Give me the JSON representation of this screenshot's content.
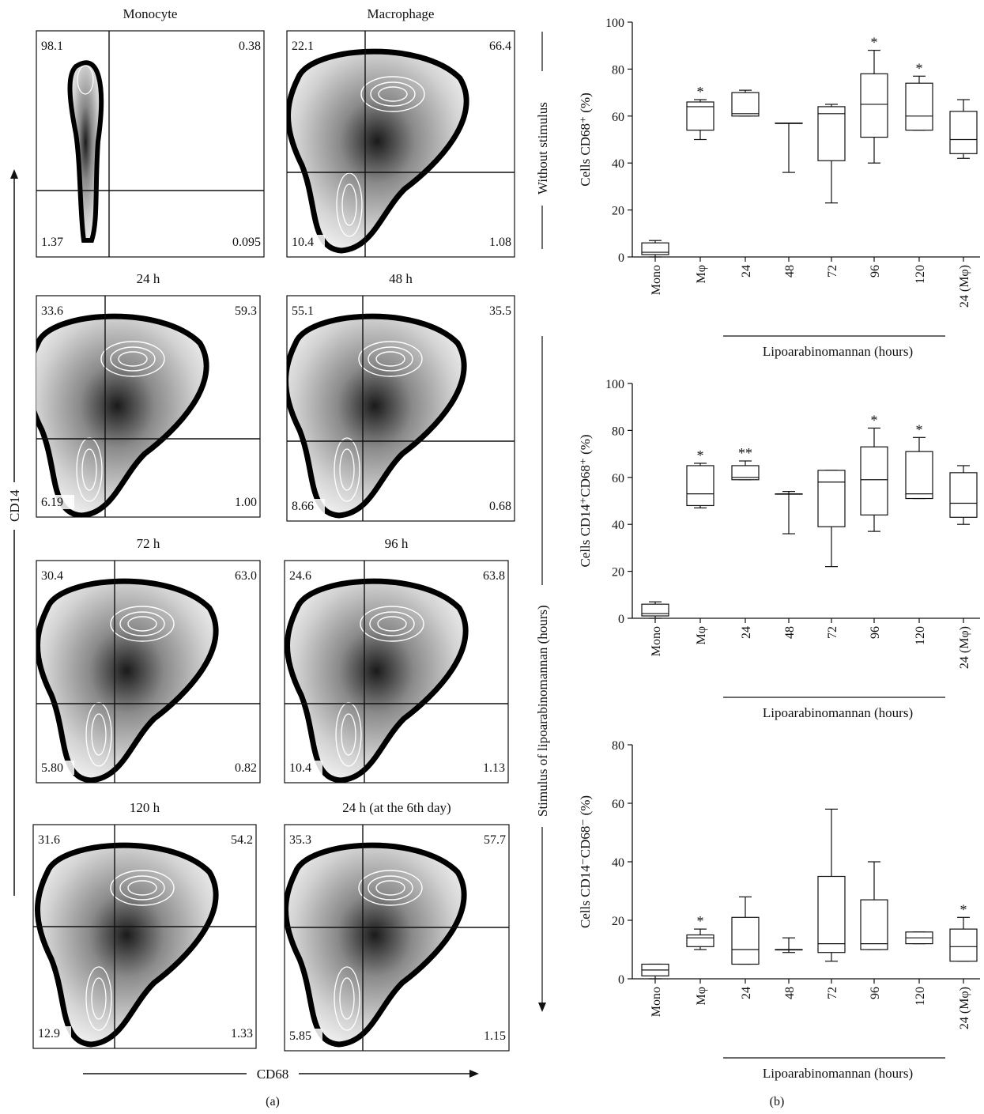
{
  "figure_a": {
    "label": "(a)",
    "y_axis": "CD14",
    "x_axis": "CD68",
    "side_top": "Without stimulus",
    "side_bottom": "Stimulus of lipoarabinomannan (hours)",
    "panels": [
      {
        "title": "Monocyte",
        "ul": "98.1",
        "ur": "0.38",
        "ll": "1.37",
        "lr": "0.095"
      },
      {
        "title": "Macrophage",
        "ul": "22.1",
        "ur": "66.4",
        "ll": "10.4",
        "lr": "1.08"
      },
      {
        "title": "24 h",
        "ul": "33.6",
        "ur": "59.3",
        "ll": "6.19",
        "lr": "1.00"
      },
      {
        "title": "48 h",
        "ul": "55.1",
        "ur": "35.5",
        "ll": "8.66",
        "lr": "0.68"
      },
      {
        "title": "72 h",
        "ul": "30.4",
        "ur": "63.0",
        "ll": "5.80",
        "lr": "0.82"
      },
      {
        "title": "96 h",
        "ul": "24.6",
        "ur": "63.8",
        "ll": "10.4",
        "lr": "1.13"
      },
      {
        "title": "120 h",
        "ul": "31.6",
        "ur": "54.2",
        "ll": "12.9",
        "lr": "1.33"
      },
      {
        "title": "24 h (at the 6th day)",
        "ul": "35.3",
        "ur": "57.7",
        "ll": "5.85",
        "lr": "1.15"
      }
    ]
  },
  "figure_b": {
    "label": "(b)"
  },
  "chart_data": [
    {
      "type": "box",
      "ylabel": "Cells CD68⁺ (%)",
      "xlabel": "Lipoarabinomannan (hours)",
      "ylim": [
        0,
        100
      ],
      "yticks": [
        0,
        20,
        40,
        60,
        80,
        100
      ],
      "categories": [
        "Mono",
        "Mφ",
        "24",
        "48",
        "72",
        "96",
        "120",
        "24 (Mφ)"
      ],
      "boxes": [
        {
          "min": 0,
          "q1": 1,
          "median": 2,
          "q3": 6,
          "max": 7,
          "star": ""
        },
        {
          "min": 50,
          "q1": 54,
          "median": 64,
          "q3": 66,
          "max": 67,
          "star": "*"
        },
        {
          "min": 60,
          "q1": 60,
          "median": 61,
          "q3": 70,
          "max": 71,
          "star": ""
        },
        {
          "min": 36,
          "q1": 57,
          "median": 57,
          "q3": 57,
          "max": 57,
          "star": ""
        },
        {
          "min": 23,
          "q1": 41,
          "median": 61,
          "q3": 64,
          "max": 65,
          "star": ""
        },
        {
          "min": 40,
          "q1": 51,
          "median": 65,
          "q3": 78,
          "max": 88,
          "star": "*"
        },
        {
          "min": 54,
          "q1": 54,
          "median": 60,
          "q3": 74,
          "max": 77,
          "star": "*"
        },
        {
          "min": 42,
          "q1": 44,
          "median": 50,
          "q3": 62,
          "max": 67,
          "star": ""
        }
      ]
    },
    {
      "type": "box",
      "ylabel": "Cells CD14⁺CD68⁺ (%)",
      "xlabel": "Lipoarabinomannan (hours)",
      "ylim": [
        0,
        100
      ],
      "yticks": [
        0,
        20,
        40,
        60,
        80,
        100
      ],
      "categories": [
        "Mono",
        "Mφ",
        "24",
        "48",
        "72",
        "96",
        "120",
        "24 (Mφ)"
      ],
      "boxes": [
        {
          "min": 0,
          "q1": 1,
          "median": 2,
          "q3": 6,
          "max": 7,
          "star": ""
        },
        {
          "min": 47,
          "q1": 48,
          "median": 53,
          "q3": 65,
          "max": 66,
          "star": "*"
        },
        {
          "min": 59,
          "q1": 59,
          "median": 60,
          "q3": 65,
          "max": 67,
          "star": "**"
        },
        {
          "min": 36,
          "q1": 53,
          "median": 53,
          "q3": 53,
          "max": 54,
          "star": ""
        },
        {
          "min": 22,
          "q1": 39,
          "median": 58,
          "q3": 63,
          "max": 63,
          "star": ""
        },
        {
          "min": 37,
          "q1": 44,
          "median": 59,
          "q3": 73,
          "max": 81,
          "star": "*"
        },
        {
          "min": 51,
          "q1": 51,
          "median": 53,
          "q3": 71,
          "max": 77,
          "star": "*"
        },
        {
          "min": 40,
          "q1": 43,
          "median": 49,
          "q3": 62,
          "max": 65,
          "star": ""
        }
      ]
    },
    {
      "type": "box",
      "ylabel": "Cells CD14⁻CD68⁻ (%)",
      "xlabel": "Lipoarabinomannan (hours)",
      "ylim": [
        0,
        80
      ],
      "yticks": [
        0,
        20,
        40,
        60,
        80
      ],
      "categories": [
        "Mono",
        "Mφ",
        "24",
        "48",
        "72",
        "96",
        "120",
        "24 (Mφ)"
      ],
      "boxes": [
        {
          "min": 0,
          "q1": 1,
          "median": 3,
          "q3": 5,
          "max": 5,
          "star": ""
        },
        {
          "min": 10,
          "q1": 11,
          "median": 14,
          "q3": 15,
          "max": 17,
          "star": "*"
        },
        {
          "min": 5,
          "q1": 5,
          "median": 10,
          "q3": 21,
          "max": 28,
          "star": ""
        },
        {
          "min": 9,
          "q1": 10,
          "median": 10,
          "q3": 10,
          "max": 14,
          "star": ""
        },
        {
          "min": 6,
          "q1": 9,
          "median": 12,
          "q3": 35,
          "max": 58,
          "star": ""
        },
        {
          "min": 10,
          "q1": 10,
          "median": 12,
          "q3": 27,
          "max": 40,
          "star": ""
        },
        {
          "min": 12,
          "q1": 12,
          "median": 14,
          "q3": 16,
          "max": 16,
          "star": ""
        },
        {
          "min": 6,
          "q1": 6,
          "median": 11,
          "q3": 17,
          "max": 21,
          "star": "*"
        }
      ]
    }
  ]
}
